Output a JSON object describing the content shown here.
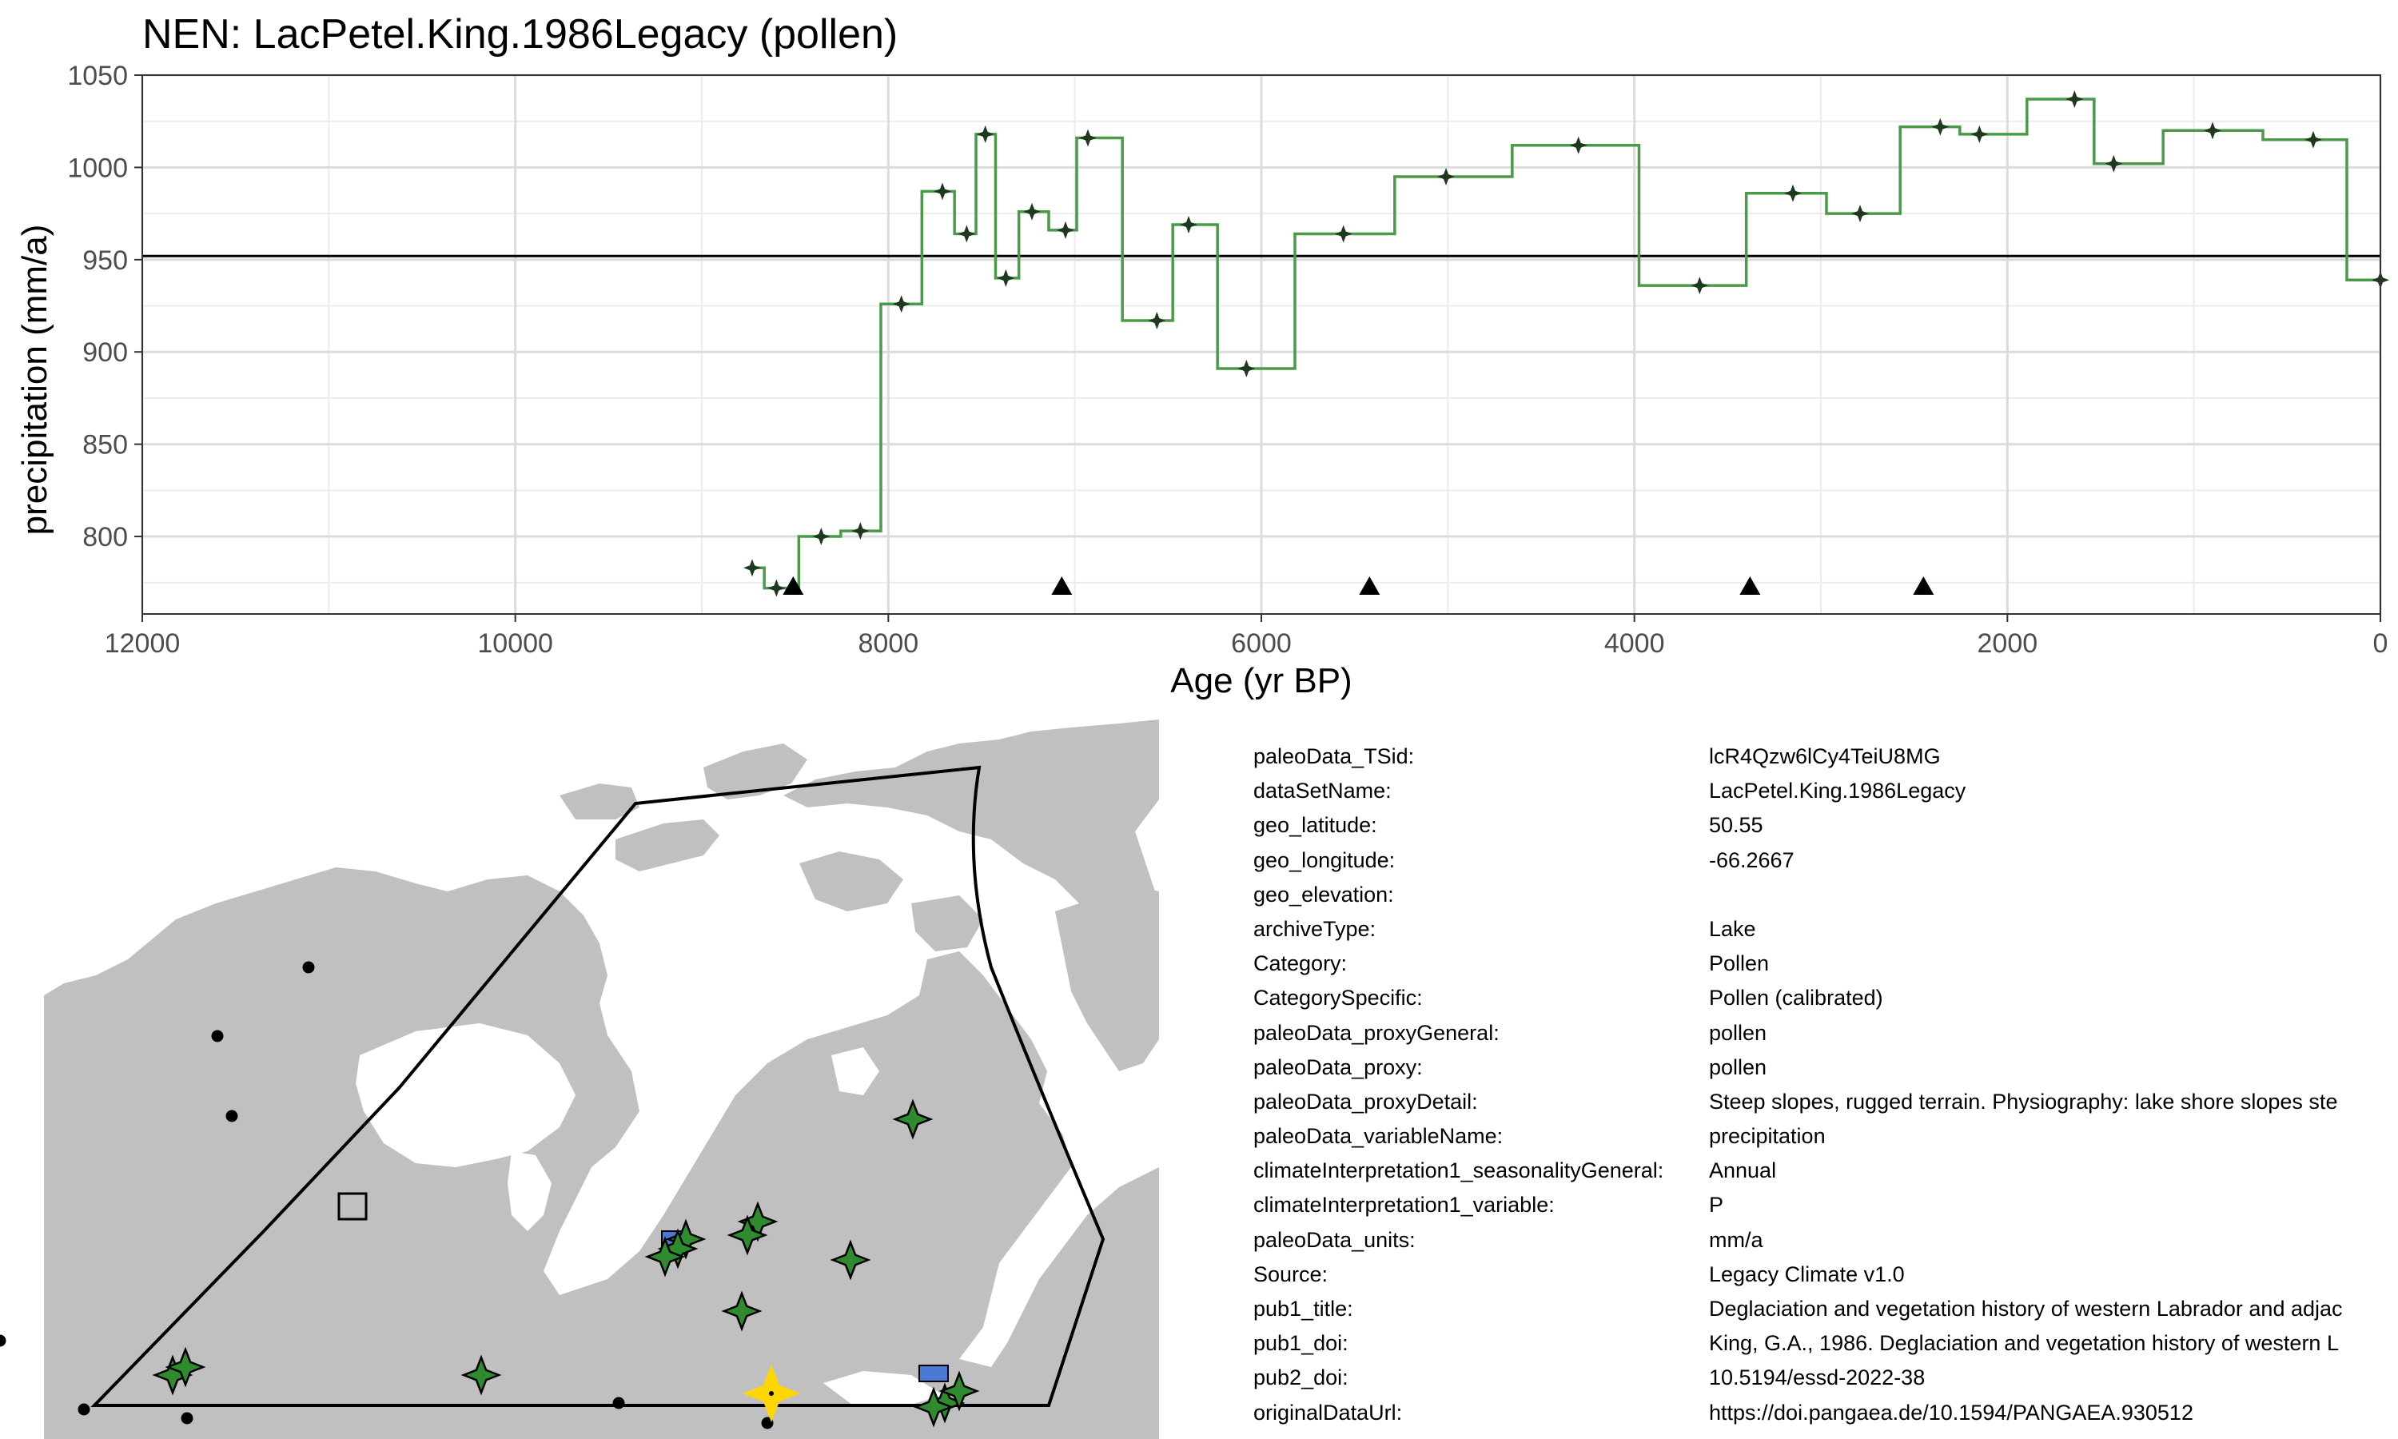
{
  "chart_data": {
    "type": "line",
    "title": "NEN: LacPetel.King.1986Legacy (pollen)",
    "xlabel": "Age (yr BP)",
    "ylabel": "precipitation (mm/a)",
    "xlim": [
      12000,
      0
    ],
    "ylim": [
      758,
      1050
    ],
    "x_ticks": [
      12000,
      10000,
      8000,
      6000,
      4000,
      2000,
      0
    ],
    "y_ticks": [
      800,
      850,
      900,
      950,
      1000,
      1050
    ],
    "grid": true,
    "step_color": "#4a9a4a",
    "point_color": "#1e3a1e",
    "reference_line": 952,
    "series": [
      {
        "x": [
          8730,
          8600,
          8360,
          8150,
          7930,
          7710,
          7580,
          7480,
          7370,
          7230,
          7050,
          6930,
          6560,
          6390,
          6080,
          5560,
          5010,
          4300,
          3650,
          3150,
          2790,
          2360,
          2150,
          1640,
          1430,
          900,
          360,
          0
        ],
        "y": [
          783,
          772,
          800,
          803,
          926,
          987,
          964,
          1018,
          940,
          976,
          966,
          1016,
          917,
          969,
          891,
          964,
          995,
          1012,
          936,
          986,
          975,
          1022,
          1018,
          1037,
          1002,
          1020,
          1015,
          939
        ]
      }
    ],
    "age_control_points": [
      8510,
      7070,
      5420,
      3380,
      2450
    ]
  },
  "metadata": [
    {
      "key": "paleoData_TSid:",
      "value": "lcR4Qzw6lCy4TeiU8MG"
    },
    {
      "key": "dataSetName:",
      "value": "LacPetel.King.1986Legacy"
    },
    {
      "key": "geo_latitude:",
      "value": "50.55"
    },
    {
      "key": "geo_longitude:",
      "value": "-66.2667"
    },
    {
      "key": "geo_elevation:",
      "value": ""
    },
    {
      "key": "archiveType:",
      "value": "Lake"
    },
    {
      "key": "Category:",
      "value": "Pollen"
    },
    {
      "key": "CategorySpecific:",
      "value": "Pollen (calibrated)"
    },
    {
      "key": "paleoData_proxyGeneral:",
      "value": "pollen"
    },
    {
      "key": "paleoData_proxy:",
      "value": "pollen"
    },
    {
      "key": "paleoData_proxyDetail:",
      "value": "Steep slopes, rugged terrain. Physiography: lake shore slopes ste"
    },
    {
      "key": "paleoData_variableName:",
      "value": "precipitation"
    },
    {
      "key": "climateInterpretation1_seasonalityGeneral:",
      "value": "Annual"
    },
    {
      "key": "climateInterpretation1_variable:",
      "value": "P"
    },
    {
      "key": "paleoData_units:",
      "value": "mm/a"
    },
    {
      "key": "Source:",
      "value": "Legacy Climate v1.0"
    },
    {
      "key": "pub1_title:",
      "value": "Deglaciation and vegetation history of western Labrador and adjac"
    },
    {
      "key": "pub1_doi:",
      "value": "King, G.A., 1986. Deglaciation and vegetation history of western L"
    },
    {
      "key": "pub2_doi:",
      "value": "10.5194/essd-2022-38"
    },
    {
      "key": "originalDataUrl:",
      "value": "https://doi.pangaea.de/10.1594/PANGAEA.930512"
    }
  ],
  "map": {
    "land_color": "#c0c0c0",
    "region_outline_color": "#000000",
    "site_marker_color": "#2e8b2e",
    "highlight_site_color": "#ffd700",
    "other_proxy_color": "#4a78d4",
    "icons": [
      "dot-marker",
      "open-square-marker",
      "star-site-marker",
      "star-highlight-marker",
      "blue-rect-marker"
    ]
  }
}
